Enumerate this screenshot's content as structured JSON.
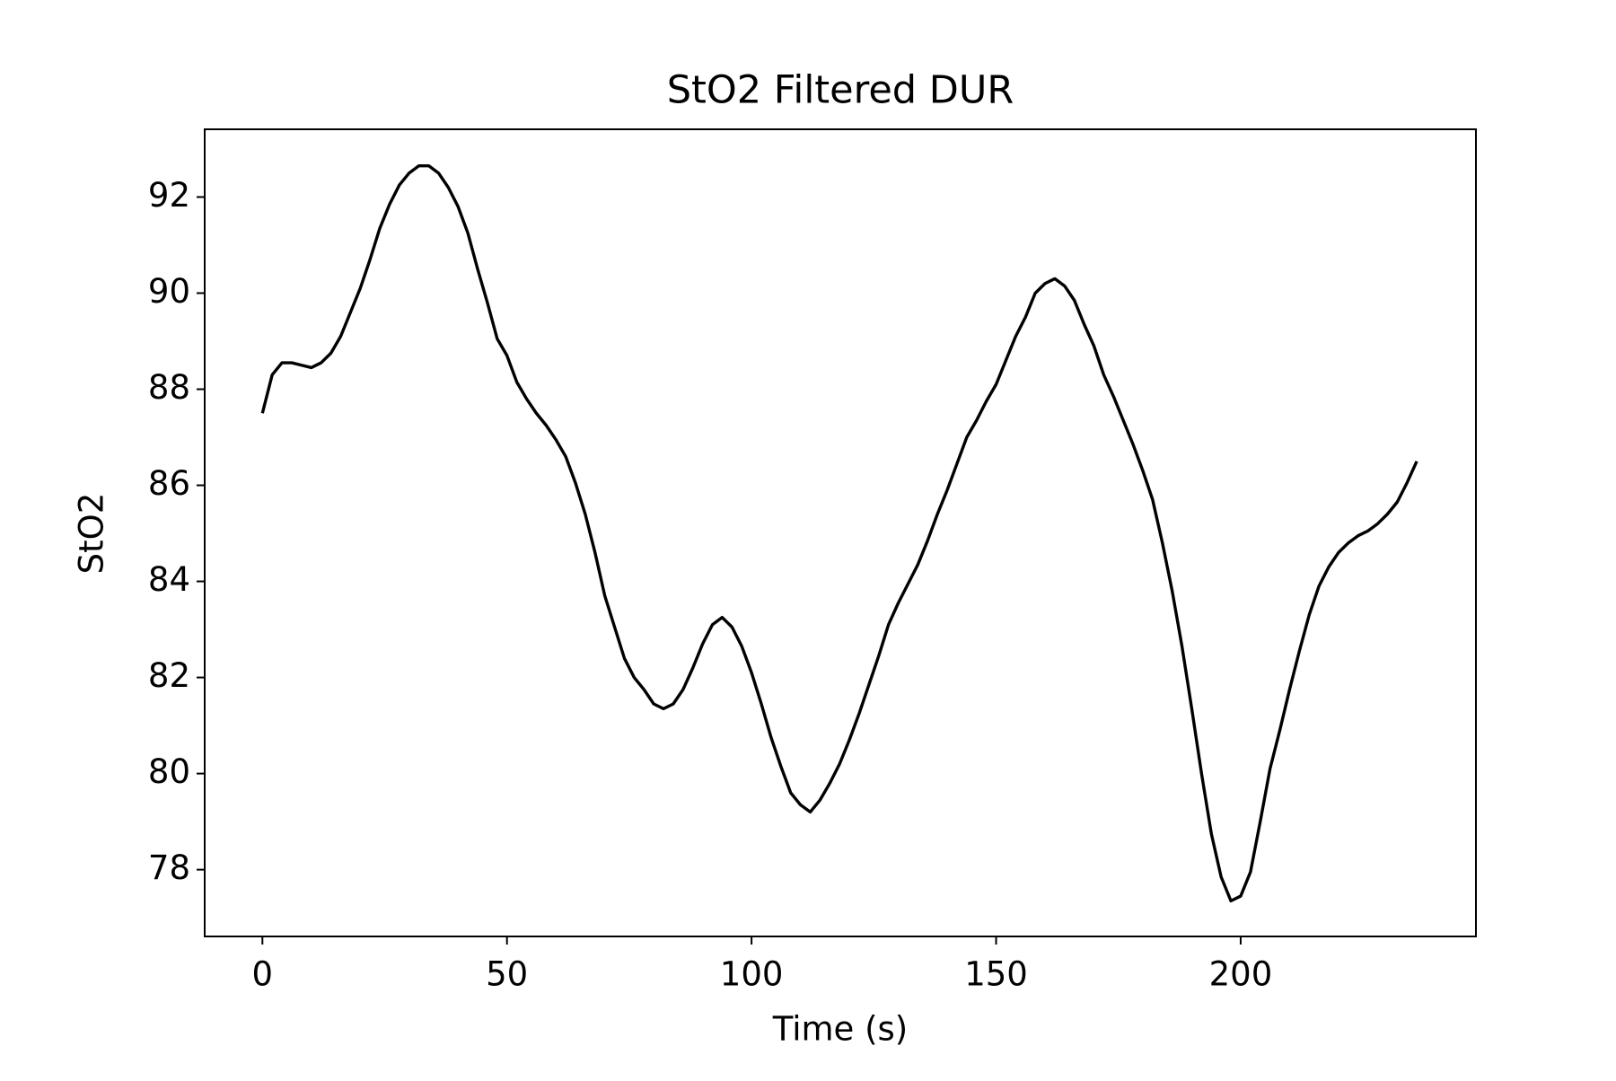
{
  "chart_data": {
    "type": "line",
    "title": "StO2 Filtered DUR",
    "x_label": "Time (s)",
    "y_label": "StO2",
    "x": [
      0,
      2,
      4,
      6,
      8,
      10,
      12,
      14,
      16,
      18,
      20,
      22,
      24,
      26,
      28,
      30,
      32,
      34,
      36,
      38,
      40,
      42,
      44,
      46,
      48,
      50,
      52,
      54,
      56,
      58,
      60,
      62,
      64,
      66,
      68,
      70,
      72,
      74,
      76,
      78,
      80,
      82,
      84,
      86,
      88,
      90,
      92,
      94,
      96,
      98,
      100,
      102,
      104,
      106,
      108,
      110,
      112,
      114,
      116,
      118,
      120,
      122,
      124,
      126,
      128,
      130,
      132,
      134,
      136,
      138,
      140,
      142,
      144,
      146,
      148,
      150,
      152,
      154,
      156,
      158,
      160,
      162,
      164,
      166,
      168,
      170,
      172,
      174,
      176,
      178,
      180,
      182,
      184,
      186,
      188,
      190,
      192,
      194,
      196,
      198,
      200,
      202,
      204,
      206,
      208,
      210,
      212,
      214,
      216,
      218,
      220,
      222,
      224,
      226,
      228,
      230,
      232,
      234,
      236
    ],
    "series": [
      {
        "name": "StO2",
        "color": "#000000",
        "values": [
          87.5,
          88.3,
          88.55,
          88.55,
          88.5,
          88.45,
          88.55,
          88.75,
          89.1,
          89.6,
          90.1,
          90.7,
          91.35,
          91.85,
          92.25,
          92.5,
          92.65,
          92.65,
          92.5,
          92.2,
          91.8,
          91.25,
          90.5,
          89.8,
          89.05,
          88.7,
          88.15,
          87.8,
          87.5,
          87.25,
          86.95,
          86.6,
          86.05,
          85.4,
          84.6,
          83.7,
          83.05,
          82.4,
          82.0,
          81.75,
          81.45,
          81.35,
          81.45,
          81.75,
          82.2,
          82.7,
          83.1,
          83.25,
          83.05,
          82.65,
          82.1,
          81.45,
          80.75,
          80.15,
          79.6,
          79.35,
          79.2,
          79.45,
          79.8,
          80.2,
          80.7,
          81.25,
          81.85,
          82.45,
          83.1,
          83.55,
          83.95,
          84.35,
          84.85,
          85.4,
          85.9,
          86.45,
          87.0,
          87.35,
          87.75,
          88.1,
          88.6,
          89.1,
          89.5,
          90.0,
          90.2,
          90.3,
          90.15,
          89.85,
          89.35,
          88.9,
          88.3,
          87.85,
          87.35,
          86.85,
          86.3,
          85.7,
          84.8,
          83.8,
          82.65,
          81.35,
          80.0,
          78.75,
          77.85,
          77.35,
          77.45,
          77.95,
          79.0,
          80.1,
          80.9,
          81.75,
          82.55,
          83.3,
          83.9,
          84.3,
          84.6,
          84.8,
          84.95,
          85.05,
          85.2,
          85.4,
          85.65,
          86.05,
          86.5
        ]
      }
    ],
    "xlim": [
      -11.8,
      248.1
    ],
    "xticks": [
      0,
      50,
      100,
      150,
      200
    ],
    "ylim": [
      76.61,
      93.41
    ],
    "yticks": [
      78,
      80,
      82,
      84,
      86,
      88,
      90,
      92
    ],
    "grid": false
  }
}
